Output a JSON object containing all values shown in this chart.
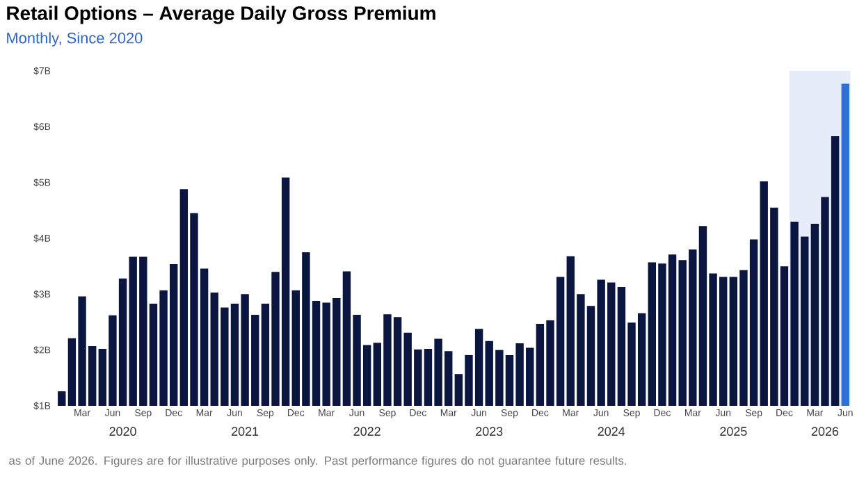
{
  "chart_data": {
    "type": "bar",
    "title": "Retail Options – Average Daily Gross Premium",
    "subtitle": "Monthly, Since 2020",
    "x": [
      "2020-01",
      "2020-02",
      "2020-03",
      "2020-04",
      "2020-05",
      "2020-06",
      "2020-07",
      "2020-08",
      "2020-09",
      "2020-10",
      "2020-11",
      "2020-12",
      "2021-01",
      "2021-02",
      "2021-03",
      "2021-04",
      "2021-05",
      "2021-06",
      "2021-07",
      "2021-08",
      "2021-09",
      "2021-10",
      "2021-11",
      "2021-12",
      "2022-01",
      "2022-02",
      "2022-03",
      "2022-04",
      "2022-05",
      "2022-06",
      "2022-07",
      "2022-08",
      "2022-09",
      "2022-10",
      "2022-11",
      "2022-12",
      "2023-01",
      "2023-02",
      "2023-03",
      "2023-04",
      "2023-05",
      "2023-06",
      "2023-07",
      "2023-08",
      "2023-09",
      "2023-10",
      "2023-11",
      "2023-12",
      "2024-01",
      "2024-02",
      "2024-03",
      "2024-04",
      "2024-05",
      "2024-06",
      "2024-07",
      "2024-08",
      "2024-09",
      "2024-10",
      "2024-11",
      "2024-12",
      "2025-01",
      "2025-02",
      "2025-03",
      "2025-04",
      "2025-05",
      "2025-06",
      "2025-07",
      "2025-08",
      "2025-09",
      "2025-10",
      "2025-11",
      "2025-12",
      "2026-01",
      "2026-02",
      "2026-03",
      "2026-04",
      "2026-05",
      "2026-06"
    ],
    "values": [
      1.26,
      2.21,
      2.96,
      2.07,
      2.02,
      2.62,
      3.28,
      3.67,
      3.67,
      2.83,
      3.07,
      3.54,
      4.88,
      4.45,
      3.46,
      3.03,
      2.76,
      2.83,
      3.0,
      2.63,
      2.83,
      3.4,
      5.09,
      3.07,
      3.75,
      2.88,
      2.85,
      2.93,
      3.41,
      2.63,
      2.09,
      2.13,
      2.64,
      2.59,
      2.31,
      2.01,
      2.02,
      2.2,
      1.98,
      1.57,
      1.91,
      2.38,
      2.16,
      2.0,
      1.91,
      2.12,
      2.04,
      2.47,
      2.53,
      3.31,
      3.68,
      3.0,
      2.79,
      3.26,
      3.21,
      3.13,
      2.49,
      2.66,
      3.57,
      3.55,
      3.71,
      3.61,
      3.8,
      4.22,
      3.37,
      3.31,
      3.31,
      3.43,
      3.98,
      5.02,
      4.55,
      3.5,
      4.3,
      4.03,
      4.26,
      4.74,
      5.83,
      6.77
    ],
    "colors": [
      "#0b1640",
      "#0b1640",
      "#0b1640",
      "#0b1640",
      "#0b1640",
      "#0b1640",
      "#0b1640",
      "#0b1640",
      "#0b1640",
      "#0b1640",
      "#0b1640",
      "#0b1640",
      "#0b1640",
      "#0b1640",
      "#0b1640",
      "#0b1640",
      "#0b1640",
      "#0b1640",
      "#0b1640",
      "#0b1640",
      "#0b1640",
      "#0b1640",
      "#0b1640",
      "#0b1640",
      "#0b1640",
      "#0b1640",
      "#0b1640",
      "#0b1640",
      "#0b1640",
      "#0b1640",
      "#0b1640",
      "#0b1640",
      "#0b1640",
      "#0b1640",
      "#0b1640",
      "#0b1640",
      "#0b1640",
      "#0b1640",
      "#0b1640",
      "#0b1640",
      "#0b1640",
      "#0b1640",
      "#0b1640",
      "#0b1640",
      "#0b1640",
      "#0b1640",
      "#0b1640",
      "#0b1640",
      "#0b1640",
      "#0b1640",
      "#0b1640",
      "#0b1640",
      "#0b1640",
      "#0b1640",
      "#0b1640",
      "#0b1640",
      "#0b1640",
      "#0b1640",
      "#0b1640",
      "#0b1640",
      "#0b1640",
      "#0b1640",
      "#0b1640",
      "#0b1640",
      "#0b1640",
      "#0b1640",
      "#0b1640",
      "#0b1640",
      "#0b1640",
      "#0b1640",
      "#0b1640",
      "#0b1640",
      "#0b1640",
      "#0b1640",
      "#0b1640",
      "#0b1640",
      "#0b1640",
      "#2f6fd6"
    ],
    "xlim": [
      "2020-01",
      "2026-06"
    ],
    "xticks": [
      {
        "value": "2020-03",
        "label": "Mar"
      },
      {
        "value": "2020-06",
        "label": "Jun"
      },
      {
        "value": "2020-09",
        "label": "Sep"
      },
      {
        "value": "2020-12",
        "label": "Dec"
      },
      {
        "value": "2021-03",
        "label": "Mar"
      },
      {
        "value": "2021-06",
        "label": "Jun"
      },
      {
        "value": "2021-09",
        "label": "Sep"
      },
      {
        "value": "2021-12",
        "label": "Dec"
      },
      {
        "value": "2022-03",
        "label": "Mar"
      },
      {
        "value": "2022-06",
        "label": "Jun"
      },
      {
        "value": "2022-09",
        "label": "Sep"
      },
      {
        "value": "2022-12",
        "label": "Dec"
      },
      {
        "value": "2023-03",
        "label": "Mar"
      },
      {
        "value": "2023-06",
        "label": "Jun"
      },
      {
        "value": "2023-09",
        "label": "Sep"
      },
      {
        "value": "2023-12",
        "label": "Dec"
      },
      {
        "value": "2024-03",
        "label": "Mar"
      },
      {
        "value": "2024-06",
        "label": "Jun"
      },
      {
        "value": "2024-09",
        "label": "Sep"
      },
      {
        "value": "2024-12",
        "label": "Dec"
      },
      {
        "value": "2025-03",
        "label": "Mar"
      },
      {
        "value": "2025-06",
        "label": "Jun"
      },
      {
        "value": "2025-09",
        "label": "Sep"
      },
      {
        "value": "2025-12",
        "label": "Dec"
      },
      {
        "value": "2026-03",
        "label": "Mar"
      },
      {
        "value": "2026-06",
        "label": "Jun"
      }
    ],
    "ylim": [
      1,
      7
    ],
    "yticks": [
      {
        "value": 1,
        "label": "$1B"
      },
      {
        "value": 2,
        "label": "$2B"
      },
      {
        "value": 3,
        "label": "$3B"
      },
      {
        "value": 4,
        "label": "$4B"
      },
      {
        "value": 5,
        "label": "$5B"
      },
      {
        "value": 6,
        "label": "$6B"
      },
      {
        "value": 7,
        "label": "$7B"
      }
    ],
    "bands": [
      {
        "axis": "x",
        "from": "2025-12-16",
        "to": "2026-06-16",
        "color": "#e6edf9"
      }
    ],
    "annotations": [
      "2020",
      "2021",
      "2022",
      "2023",
      "2024",
      "2025",
      "2026",
      "as of June 2026. Figures are for illustrative purposes only. Past performance figures do not guarantee future results."
    ],
    "grid": false
  }
}
